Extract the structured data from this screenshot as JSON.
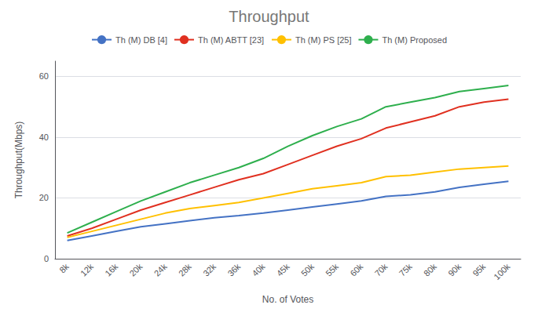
{
  "chart_data": {
    "type": "line",
    "title": "Throughput",
    "xlabel": "No. of Votes",
    "ylabel": "Throughput(Mbps)",
    "categories": [
      "8k",
      "12k",
      "16k",
      "20k",
      "24k",
      "28k",
      "32k",
      "36k",
      "40k",
      "45k",
      "50k",
      "55k",
      "60k",
      "70k",
      "75k",
      "80k",
      "90k",
      "95k",
      "100k"
    ],
    "series": [
      {
        "name": "Th (M) DB [4]",
        "color": "#4472C4",
        "values": [
          6,
          7.5,
          9,
          10.5,
          11.5,
          12.5,
          13.5,
          14.2,
          15,
          16,
          17,
          18,
          19,
          20.5,
          21,
          22,
          23.5,
          24.5,
          25.5
        ]
      },
      {
        "name": "Th (M) ABTT [23]",
        "color": "#E03020",
        "values": [
          7.5,
          10,
          13,
          16,
          18.5,
          21,
          23.5,
          26,
          28,
          31,
          34,
          37,
          39.5,
          43,
          45,
          47,
          50,
          51.5,
          52.5
        ]
      },
      {
        "name": "Th (M) PS [25]",
        "color": "#FFC000",
        "values": [
          7,
          9,
          11,
          13,
          15,
          16.5,
          17.5,
          18.5,
          20,
          21.5,
          23,
          24,
          25,
          27,
          27.5,
          28.5,
          29.5,
          30,
          30.5
        ]
      },
      {
        "name": "Th (M) Proposed",
        "color": "#2EAF4D",
        "values": [
          8.5,
          12,
          15.5,
          19,
          22,
          25,
          27.5,
          30,
          33,
          37,
          40.5,
          43.5,
          46,
          50,
          51.5,
          53,
          55,
          56,
          57
        ]
      }
    ],
    "ylim": [
      0,
      65
    ],
    "yticks": [
      0,
      20,
      40,
      60
    ],
    "grid": true,
    "legend": "top"
  }
}
